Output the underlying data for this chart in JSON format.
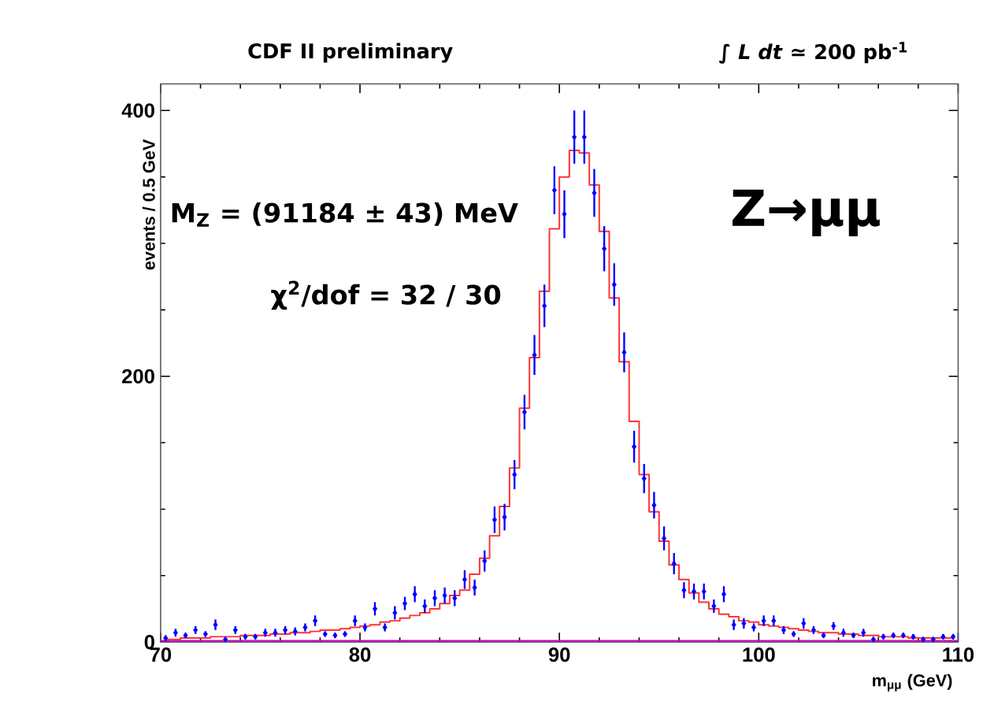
{
  "chart_data": {
    "type": "scatter",
    "xlabel": "m$_{μμ}$ (GeV)",
    "ylabel": "events / 0.5 GeV",
    "annotations": [
      "CDF II preliminary",
      "∫ *L dt* ≃ 200 pb$^{-1}$",
      "M$_{Z}$ = (91184 ± 43) MeV",
      "χ$^{2}$/dof = 32 / 30",
      "Z→μμ"
    ],
    "x": [
      70.25,
      70.75,
      71.25,
      71.75,
      72.25,
      72.75,
      73.25,
      73.75,
      74.25,
      74.75,
      75.25,
      75.75,
      76.25,
      76.75,
      77.25,
      77.75,
      78.25,
      78.75,
      79.25,
      79.75,
      80.25,
      80.75,
      81.25,
      81.75,
      82.25,
      82.75,
      83.25,
      83.75,
      84.25,
      84.75,
      85.25,
      85.75,
      86.25,
      86.75,
      87.25,
      87.75,
      88.25,
      88.75,
      89.25,
      89.75,
      90.25,
      90.75,
      91.25,
      91.75,
      92.25,
      92.75,
      93.25,
      93.75,
      94.25,
      94.75,
      95.25,
      95.75,
      96.25,
      96.75,
      97.25,
      97.75,
      98.25,
      98.75,
      99.25,
      99.75,
      100.25,
      100.75,
      101.25,
      101.75,
      102.25,
      102.75,
      103.25,
      103.75,
      104.25,
      104.75,
      105.25,
      105.75,
      106.25,
      106.75,
      107.25,
      107.75,
      108.25,
      108.75,
      109.25,
      109.75
    ],
    "series": [
      {
        "type": "line",
        "color": "#cc00cc",
        "x": [
          70,
          110
        ],
        "values": [
          1,
          1
        ]
      },
      {
        "type": "step",
        "color": "#ff3333",
        "values": [
          2,
          2,
          3,
          3,
          3,
          4,
          4,
          4,
          5,
          5,
          5,
          6,
          6,
          7,
          7,
          8,
          9,
          9,
          10,
          11,
          12,
          13,
          15,
          16,
          18,
          20,
          22,
          25,
          29,
          35,
          39,
          51,
          63,
          80,
          102,
          131,
          176,
          214,
          264,
          311,
          350,
          370,
          368,
          344,
          309,
          259,
          211,
          166,
          126,
          98,
          76,
          58,
          47,
          37,
          30,
          25,
          21,
          19,
          16,
          15,
          13,
          12,
          11,
          10,
          9,
          8,
          7,
          7,
          6,
          6,
          5,
          5,
          4,
          4,
          4,
          3,
          3,
          3,
          3,
          3
        ]
      },
      {
        "color": "#0000ff",
        "marker": "diamond",
        "values": [
          3,
          7,
          5,
          9,
          6,
          13,
          2,
          9,
          4,
          4,
          7,
          7,
          9,
          8,
          11,
          16,
          6,
          5,
          6,
          16,
          11,
          25,
          11,
          22,
          29,
          36,
          27,
          33,
          35,
          33,
          47,
          41,
          61,
          92,
          94,
          126,
          173,
          216,
          253,
          340,
          322,
          380,
          380,
          338,
          296,
          269,
          218,
          147,
          123,
          103,
          78,
          59,
          39,
          38,
          38,
          27,
          36,
          13,
          14,
          11,
          16,
          16,
          9,
          6,
          14,
          9,
          5,
          12,
          7,
          5,
          7,
          2,
          4,
          5,
          5,
          4,
          2,
          2,
          4,
          4
        ],
        "errors": [
          2,
          3,
          2,
          3,
          2,
          4,
          1,
          3,
          2,
          2,
          3,
          3,
          3,
          3,
          3,
          4,
          2,
          2,
          2,
          4,
          3,
          5,
          3,
          5,
          5,
          6,
          5,
          6,
          6,
          6,
          7,
          6,
          8,
          10,
          10,
          11,
          13,
          15,
          16,
          18,
          18,
          20,
          20,
          18,
          17,
          16,
          15,
          12,
          11,
          10,
          9,
          8,
          6,
          6,
          6,
          5,
          6,
          4,
          4,
          3,
          4,
          4,
          3,
          2,
          4,
          3,
          2,
          3,
          3,
          2,
          3,
          1,
          2,
          2,
          2,
          2,
          1,
          1,
          2,
          2
        ]
      }
    ],
    "xlim": [
      70,
      110
    ],
    "ylim": [
      0,
      420
    ],
    "xticks": [
      70,
      80,
      90,
      100,
      110
    ],
    "yticks": [
      0,
      200,
      400
    ]
  }
}
